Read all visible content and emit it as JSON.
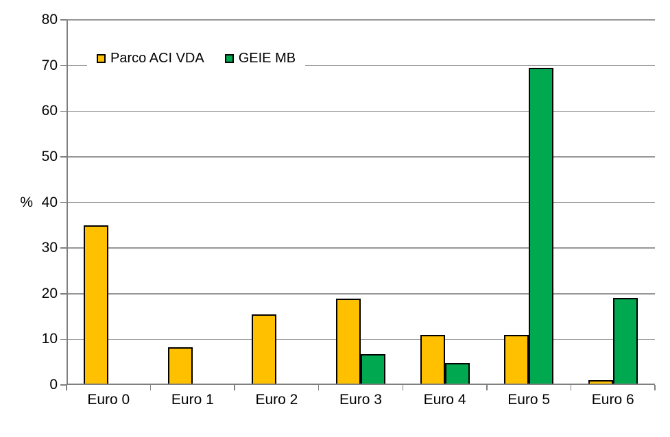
{
  "chart_data": {
    "type": "bar",
    "title": "",
    "xlabel": "",
    "ylabel": "%",
    "categories": [
      "Euro 0",
      "Euro 1",
      "Euro 2",
      "Euro 3",
      "Euro 4",
      "Euro 5",
      "Euro 6"
    ],
    "series": [
      {
        "name": "Parco ACI VDA",
        "color": "#FFC000",
        "values": [
          35,
          8.2,
          15.4,
          18.9,
          11,
          11,
          1
        ]
      },
      {
        "name": "GEIE MB",
        "color": "#00A84F",
        "values": [
          0,
          0,
          0,
          6.7,
          4.8,
          69.5,
          19
        ]
      }
    ],
    "ylim": [
      0,
      80
    ],
    "ytick_step": 10,
    "yticks": [
      0,
      10,
      20,
      30,
      40,
      50,
      60,
      70,
      80
    ],
    "grid": true,
    "legend_position": "top-left-inside",
    "colors": {
      "gridline": "#969696",
      "axis": "#7F7F7F",
      "bar_border": "#000000",
      "text": "#000000",
      "background": "#FFFFFF"
    }
  }
}
